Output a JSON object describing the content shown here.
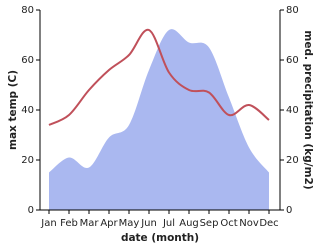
{
  "chart_data": {
    "type": "line-area",
    "categories": [
      "Jan",
      "Feb",
      "Mar",
      "Apr",
      "May",
      "Jun",
      "Jul",
      "Aug",
      "Sep",
      "Oct",
      "Nov",
      "Dec"
    ],
    "x_label": "date (month)",
    "y_label": "max temp (C)",
    "y2_label": "med. precipitation (kg/m2)",
    "ylim": [
      0,
      80
    ],
    "yticks": [
      0,
      20,
      40,
      60,
      80
    ],
    "y2lim": [
      0,
      80
    ],
    "y2ticks": [
      0,
      20,
      40,
      60,
      80
    ],
    "series": [
      {
        "name": "max temp",
        "color": "#c0505a",
        "kind": "line",
        "values": [
          34,
          38,
          48,
          56,
          62,
          72,
          55,
          48,
          47,
          38,
          42,
          36
        ]
      },
      {
        "name": "med. precipitation",
        "color": "#aab8f0",
        "kind": "area",
        "axis": "y2",
        "values": [
          15,
          21,
          17,
          29,
          34,
          56,
          72,
          67,
          65,
          45,
          25,
          15
        ]
      }
    ]
  }
}
